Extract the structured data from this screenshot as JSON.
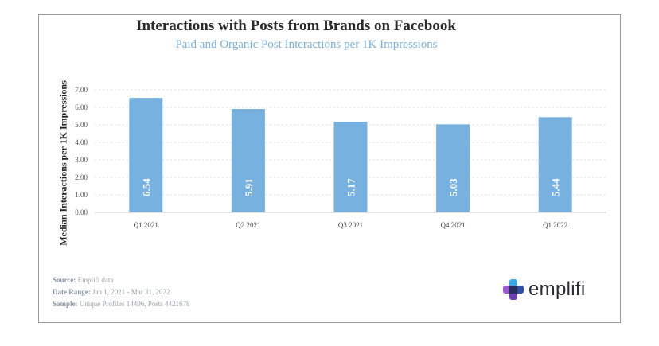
{
  "chart_data": {
    "type": "bar",
    "title": "Interactions with Posts from Brands on Facebook",
    "subtitle": "Paid and Organic Post Interactions per 1K Impressions",
    "ylabel": "Median Interactions per 1K Impressions",
    "xlabel": "",
    "categories": [
      "Q1 2021",
      "Q2 2021",
      "Q3 2021",
      "Q4 2021",
      "Q1 2022"
    ],
    "values": [
      6.54,
      5.91,
      5.17,
      5.03,
      5.44
    ],
    "value_labels": [
      "6.54",
      "5.91",
      "5.17",
      "5.03",
      "5.44"
    ],
    "ylim": [
      0,
      7
    ],
    "yticks": [
      "0.00",
      "1.00",
      "2.00",
      "3.00",
      "4.00",
      "5.00",
      "6.00",
      "7.00"
    ],
    "grid": true,
    "bar_color": "#77b1e0"
  },
  "footer": {
    "source_label": "Source:",
    "source_value": "Emplifi data",
    "range_label": "Date Range:",
    "range_value": "Jan 1, 2021 - Mar 31, 2022",
    "sample_label": "Sample:",
    "sample_value": "Unique Profiles 14496, Posts 4421678"
  },
  "logo": {
    "text": "emplifi",
    "icon": "emplifi-cross-logo-icon"
  }
}
